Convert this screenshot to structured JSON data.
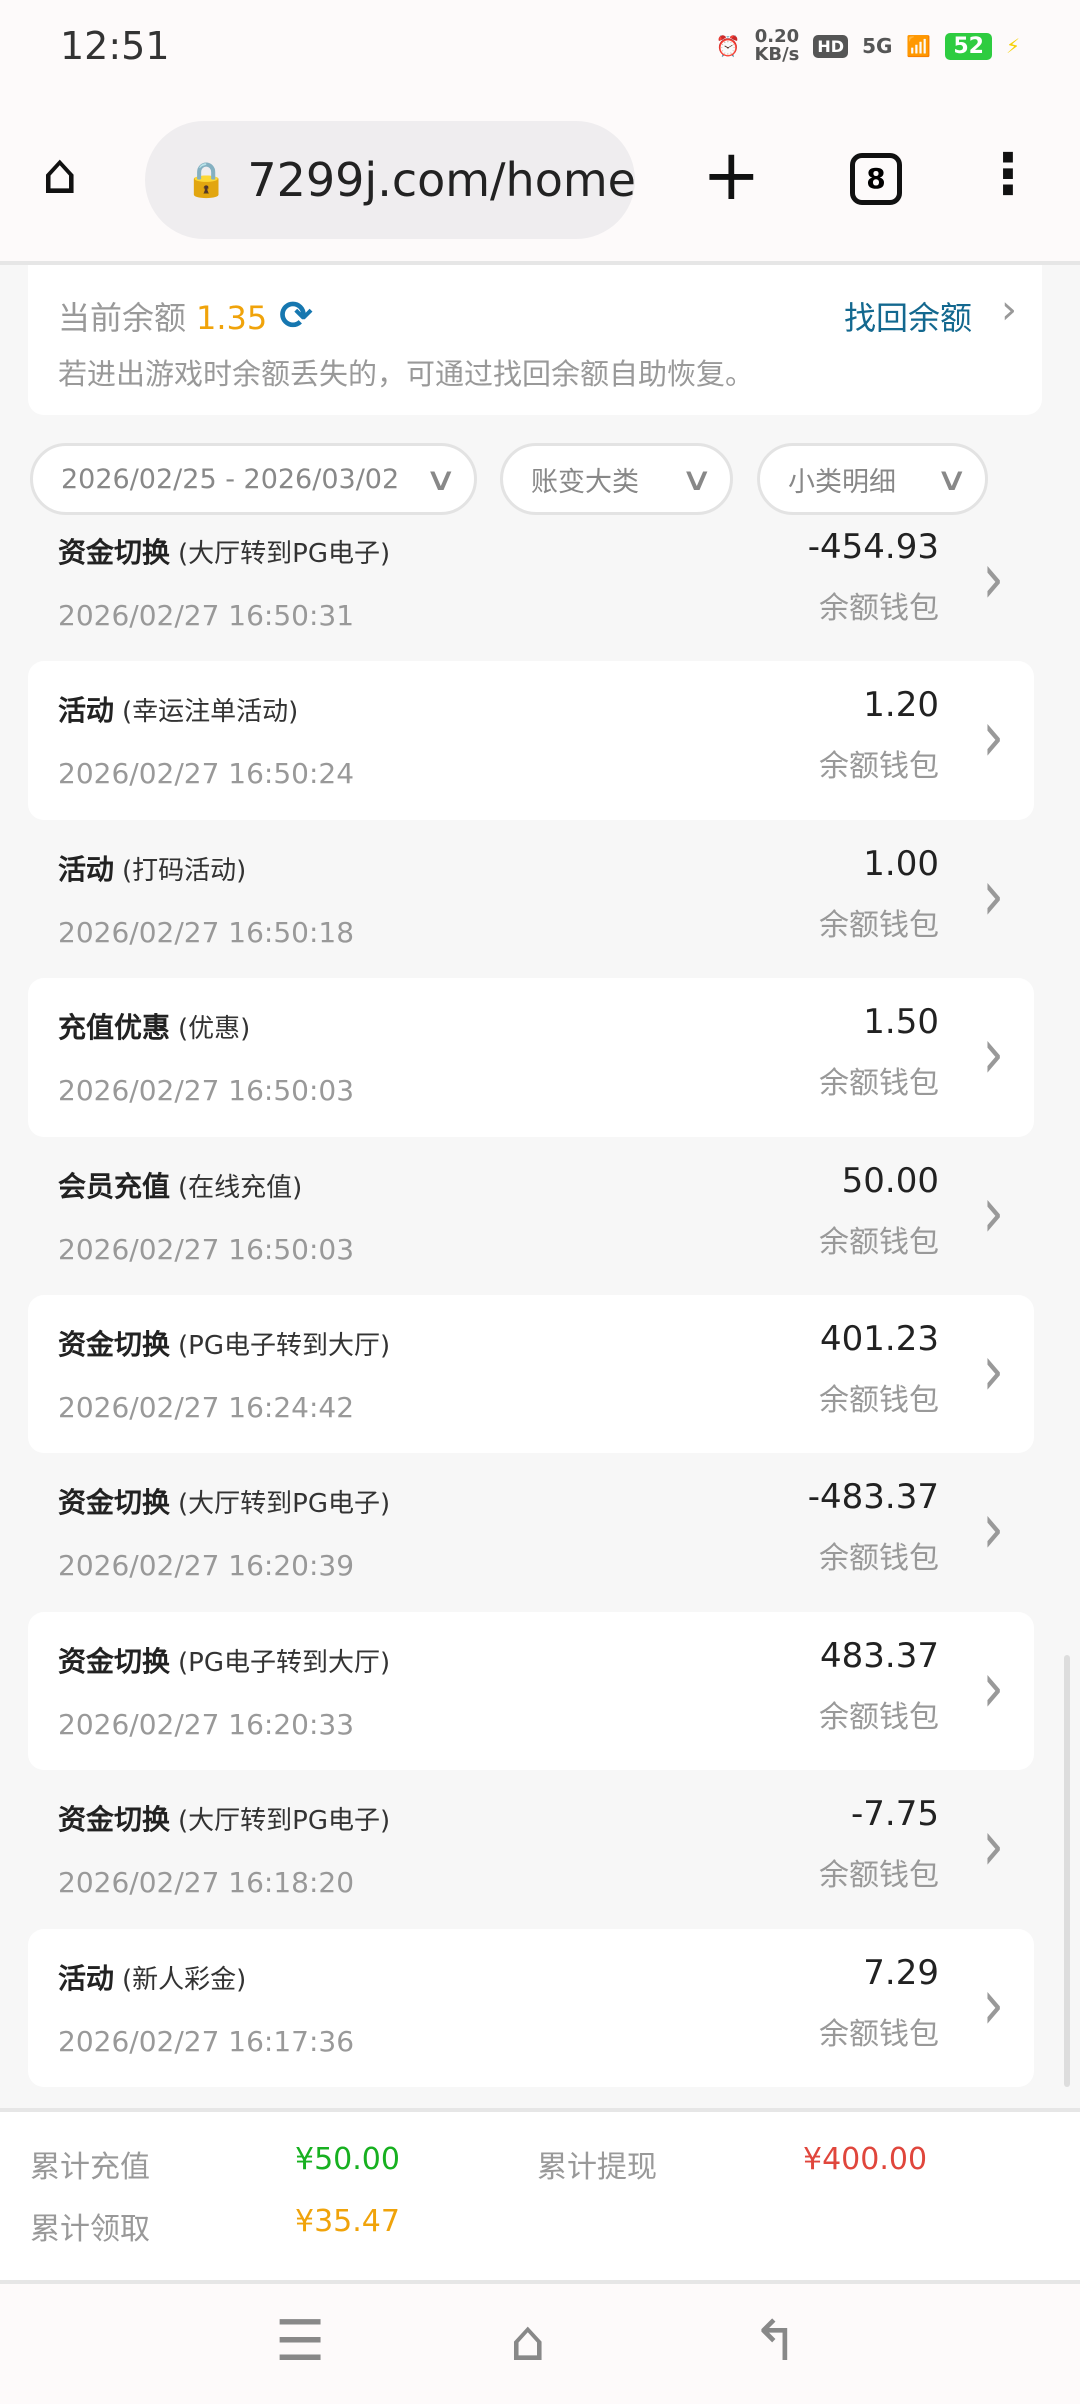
{
  "status_bar": {
    "time": "12:51",
    "net_speed": "0.20",
    "net_unit": "KB/s",
    "hd": "HD",
    "signal": "5G",
    "battery": "52",
    "icons": [
      "alarm-icon",
      "wifi-icon",
      "charging-icon"
    ]
  },
  "browser": {
    "url": "7299j.com/home",
    "tab_count": "8",
    "icons": [
      "home-icon",
      "lock-icon",
      "plus-icon",
      "tabs-icon",
      "more-icon"
    ]
  },
  "balance": {
    "label": "当前余额",
    "value": "1.35",
    "recover_label": "找回余额",
    "hint": "若进出游戏时余额丢失的，可通过找回余额自助恢复。"
  },
  "filters": {
    "date_range": "2026/02/25 - 2026/03/02",
    "category": "账变大类",
    "subcategory": "小类明细"
  },
  "transactions": [
    {
      "type": "资金切换",
      "detail": "(大厅转到PG电子)",
      "time": "2026/02/27 16:50:31",
      "amount": "-454.93",
      "wallet": "余额钱包"
    },
    {
      "type": "活动",
      "detail": "(幸运注单活动)",
      "time": "2026/02/27 16:50:24",
      "amount": "1.20",
      "wallet": "余额钱包"
    },
    {
      "type": "活动",
      "detail": "(打码活动)",
      "time": "2026/02/27 16:50:18",
      "amount": "1.00",
      "wallet": "余额钱包"
    },
    {
      "type": "充值优惠",
      "detail": "(优惠)",
      "time": "2026/02/27 16:50:03",
      "amount": "1.50",
      "wallet": "余额钱包"
    },
    {
      "type": "会员充值",
      "detail": "(在线充值)",
      "time": "2026/02/27 16:50:03",
      "amount": "50.00",
      "wallet": "余额钱包"
    },
    {
      "type": "资金切换",
      "detail": "(PG电子转到大厅)",
      "time": "2026/02/27 16:24:42",
      "amount": "401.23",
      "wallet": "余额钱包"
    },
    {
      "type": "资金切换",
      "detail": "(大厅转到PG电子)",
      "time": "2026/02/27 16:20:39",
      "amount": "-483.37",
      "wallet": "余额钱包"
    },
    {
      "type": "资金切换",
      "detail": "(PG电子转到大厅)",
      "time": "2026/02/27 16:20:33",
      "amount": "483.37",
      "wallet": "余额钱包"
    },
    {
      "type": "资金切换",
      "detail": "(大厅转到PG电子)",
      "time": "2026/02/27 16:18:20",
      "amount": "-7.75",
      "wallet": "余额钱包"
    },
    {
      "type": "活动",
      "detail": "(新人彩金)",
      "time": "2026/02/27 16:17:36",
      "amount": "7.29",
      "wallet": "余额钱包"
    }
  ],
  "summary": {
    "deposit_label": "累计充值",
    "deposit": "¥50.00",
    "withdraw_label": "累计提现",
    "withdraw": "¥400.00",
    "claimed_label": "累计领取",
    "claimed": "¥35.47"
  },
  "colors": {
    "balance": "#f0a30a",
    "deposit": "#17b020",
    "withdraw": "#e0463c",
    "claimed": "#f0a30a",
    "link": "#13688f"
  }
}
